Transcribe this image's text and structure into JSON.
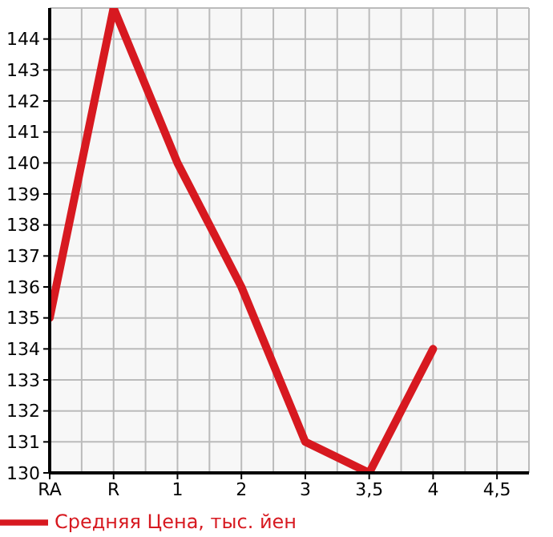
{
  "chart_data": {
    "type": "line",
    "categories": [
      "RA",
      "R",
      "1",
      "2",
      "3",
      "3,5",
      "4",
      "4,5"
    ],
    "series": [
      {
        "name": "Средняя Цена, тыс. йен",
        "color": "#d71920",
        "values": [
          135,
          145,
          140,
          136,
          131,
          130,
          134,
          null
        ]
      }
    ],
    "ylim": [
      130,
      145
    ],
    "yticks": [
      130,
      131,
      132,
      133,
      134,
      135,
      136,
      137,
      138,
      139,
      140,
      141,
      142,
      143,
      144
    ],
    "grid": true,
    "legend": "bottom left",
    "marker": "none",
    "line_style": "solid"
  }
}
